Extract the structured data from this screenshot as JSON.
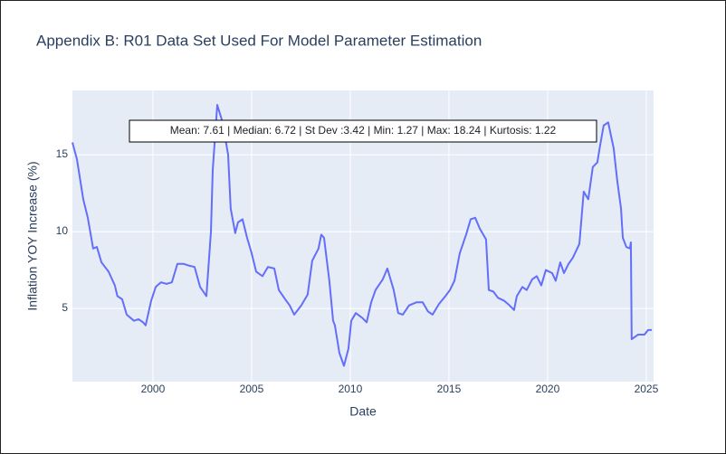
{
  "chart_data": {
    "type": "line",
    "title": "Appendix B: R01 Data Set Used For Model Parameter Estimation",
    "x_label": "Date",
    "y_label": "Inflation YOY Increase (%)",
    "annotation": "Mean: 7.61 | Median: 6.72 | St Dev :3.42 | Min: 1.27 | Max: 18.24 | Kurtosis: 1.22",
    "color": "#636efa",
    "grid": true,
    "xlim": [
      1995.92,
      2025.37
    ],
    "xticks": [
      2000,
      2005,
      2010,
      2015,
      2020,
      2025
    ],
    "ylim": [
      0.24,
      19.18
    ],
    "yticks": [
      5,
      10,
      15
    ],
    "x": [
      1995.92,
      1996.15,
      1996.47,
      1996.7,
      1996.97,
      1997.16,
      1997.39,
      1997.75,
      1998.07,
      1998.2,
      1998.44,
      1998.67,
      1999.04,
      1999.27,
      1999.5,
      1999.63,
      1999.77,
      1999.91,
      2000.14,
      2000.41,
      2000.69,
      2000.96,
      2001.24,
      2001.56,
      2001.79,
      2002.11,
      2002.39,
      2002.71,
      2002.94,
      2003.03,
      2003.26,
      2003.53,
      2003.81,
      2003.94,
      2004.17,
      2004.31,
      2004.54,
      2004.77,
      2005.0,
      2005.23,
      2005.55,
      2005.83,
      2006.15,
      2006.38,
      2006.7,
      2006.93,
      2007.16,
      2007.52,
      2007.84,
      2008.07,
      2008.39,
      2008.53,
      2008.67,
      2008.94,
      2009.13,
      2009.22,
      2009.45,
      2009.68,
      2009.91,
      2010.05,
      2010.28,
      2010.6,
      2010.83,
      2011.06,
      2011.28,
      2011.65,
      2011.88,
      2012.2,
      2012.43,
      2012.66,
      2012.98,
      2013.35,
      2013.67,
      2013.94,
      2014.17,
      2014.5,
      2014.82,
      2015.05,
      2015.28,
      2015.55,
      2015.87,
      2016.1,
      2016.33,
      2016.56,
      2016.88,
      2017.02,
      2017.25,
      2017.48,
      2017.8,
      2018.07,
      2018.3,
      2018.44,
      2018.72,
      2018.94,
      2019.22,
      2019.45,
      2019.68,
      2019.91,
      2020.23,
      2020.41,
      2020.64,
      2020.83,
      2021.06,
      2021.28,
      2021.61,
      2021.83,
      2022.06,
      2022.29,
      2022.52,
      2022.66,
      2022.84,
      2023.07,
      2023.35,
      2023.53,
      2023.72,
      2023.81,
      2023.99,
      2024.17,
      2024.22,
      2024.26,
      2024.59,
      2024.91,
      2025.09,
      2025.28
    ],
    "values": [
      15.8,
      14.7,
      12.1,
      10.9,
      8.9,
      9.0,
      8.0,
      7.4,
      6.5,
      5.8,
      5.6,
      4.6,
      4.2,
      4.3,
      4.1,
      3.9,
      4.7,
      5.5,
      6.4,
      6.7,
      6.6,
      6.7,
      7.9,
      7.9,
      7.8,
      7.7,
      6.4,
      5.8,
      10.0,
      14.0,
      18.24,
      17.1,
      15.0,
      11.5,
      9.9,
      10.6,
      10.8,
      9.6,
      8.6,
      7.4,
      7.1,
      7.7,
      7.6,
      6.2,
      5.6,
      5.2,
      4.6,
      5.2,
      5.9,
      8.1,
      8.9,
      9.8,
      9.6,
      6.8,
      4.2,
      3.9,
      2.1,
      1.27,
      2.4,
      4.2,
      4.7,
      4.4,
      4.1,
      5.4,
      6.2,
      6.9,
      7.6,
      6.2,
      4.7,
      4.6,
      5.2,
      5.4,
      5.4,
      4.8,
      4.6,
      5.3,
      5.8,
      6.2,
      6.8,
      8.6,
      9.8,
      10.8,
      10.9,
      10.2,
      9.5,
      6.2,
      6.1,
      5.7,
      5.5,
      5.2,
      4.9,
      5.8,
      6.4,
      6.2,
      6.9,
      7.1,
      6.5,
      7.5,
      7.3,
      6.8,
      8.0,
      7.3,
      7.9,
      8.3,
      9.2,
      12.6,
      12.1,
      14.2,
      14.5,
      15.6,
      16.9,
      17.1,
      15.4,
      13.3,
      11.5,
      9.6,
      9.0,
      8.9,
      9.3,
      3.0,
      3.3,
      3.3,
      3.6,
      3.6
    ]
  }
}
